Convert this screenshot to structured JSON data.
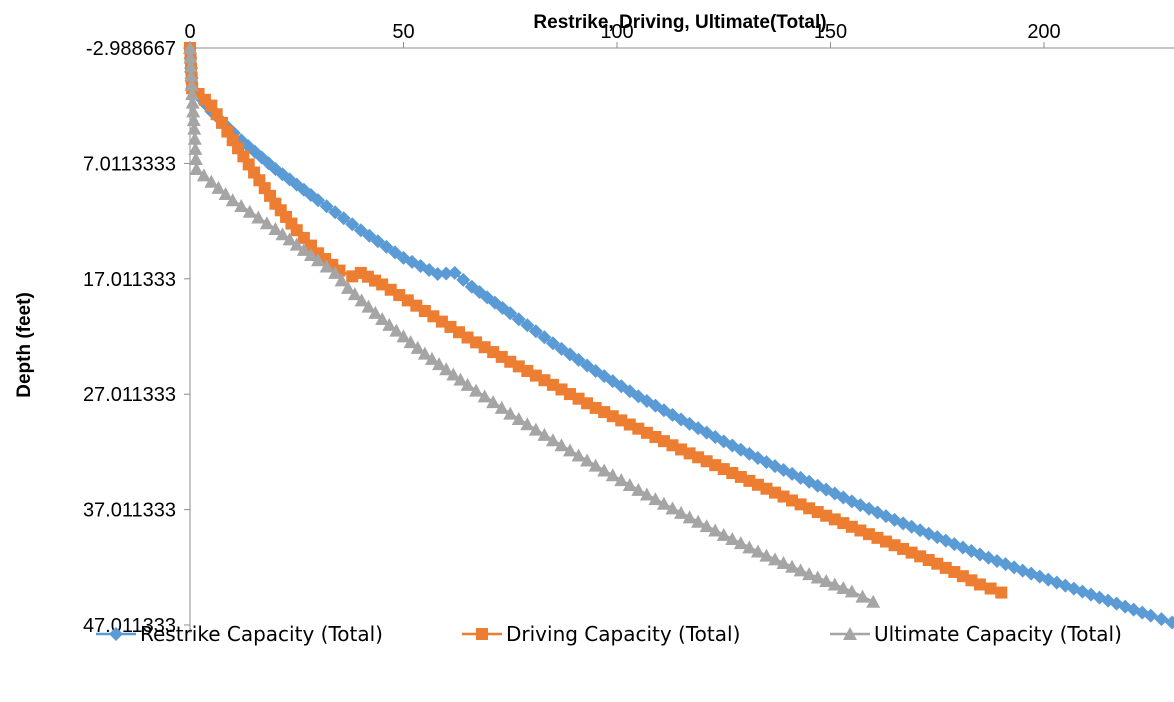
{
  "chart_data": {
    "type": "line",
    "title": "",
    "xlabel": "Restrike, Driving, Ultimate(Total)",
    "ylabel": "Depth (feet)",
    "x_axis_position": "top",
    "y_axis_reversed": true,
    "xlim": [
      0,
      230
    ],
    "ylim": [
      -2.988667,
      47.011333
    ],
    "x_ticks": [
      0,
      50,
      100,
      150,
      200
    ],
    "x_tick_labels": [
      "0",
      "50",
      "100",
      "150",
      "200"
    ],
    "y_ticks": [
      -2.988667,
      7.011333,
      17.011333,
      27.011333,
      37.011333,
      47.011333
    ],
    "y_tick_labels": [
      "-2.988667",
      "7.0113333",
      "17.011333",
      "27.011333",
      "37.011333",
      "47.011333"
    ],
    "grid": false,
    "legend_position": "bottom",
    "series": [
      {
        "name": "Restrike Capacity (Total)",
        "color": "#5B9BD5",
        "marker": "diamond",
        "x": [
          0,
          0.5,
          5,
          12,
          20,
          30,
          40,
          50,
          58,
          62,
          66,
          75,
          85,
          95,
          105,
          115,
          125,
          135,
          145,
          155,
          165,
          175,
          185,
          195,
          205,
          215,
          225,
          230
        ],
        "y": [
          -2.988667,
          0.5,
          2.5,
          5.0,
          7.5,
          10.2,
          12.8,
          15.2,
          16.6,
          16.5,
          17.7,
          20.0,
          22.6,
          25.0,
          27.2,
          29.2,
          31.1,
          32.9,
          34.6,
          36.3,
          37.9,
          39.4,
          40.9,
          42.3,
          43.6,
          44.9,
          46.2,
          46.8
        ]
      },
      {
        "name": "Driving Capacity (Total)",
        "color": "#ED7D31",
        "marker": "square",
        "x": [
          0,
          0.5,
          5,
          10,
          15,
          20,
          25,
          30,
          35,
          38,
          40,
          45,
          55,
          65,
          75,
          85,
          95,
          105,
          115,
          125,
          135,
          145,
          155,
          165,
          175,
          185,
          190
        ],
        "y": [
          -2.988667,
          0.5,
          2.0,
          5.0,
          7.8,
          10.5,
          12.8,
          14.8,
          16.3,
          16.8,
          16.5,
          17.5,
          19.8,
          22.1,
          24.2,
          26.2,
          28.2,
          30.0,
          31.8,
          33.5,
          35.2,
          36.9,
          38.5,
          40.1,
          41.7,
          43.5,
          44.2
        ]
      },
      {
        "name": "Ultimate Capacity (Total)",
        "color": "#A5A5A5",
        "marker": "triangle",
        "x": [
          0,
          0.5,
          1,
          1.5,
          5,
          10,
          20,
          30,
          34,
          37,
          45,
          55,
          65,
          75,
          85,
          95,
          105,
          115,
          125,
          135,
          145,
          155,
          160
        ],
        "y": [
          -2.988667,
          1.0,
          4.0,
          7.5,
          8.6,
          10.2,
          12.7,
          15.4,
          16.5,
          17.8,
          20.5,
          23.5,
          26.2,
          28.7,
          31.0,
          33.2,
          35.3,
          37.3,
          39.2,
          41.0,
          42.6,
          44.1,
          45.0
        ]
      }
    ]
  }
}
